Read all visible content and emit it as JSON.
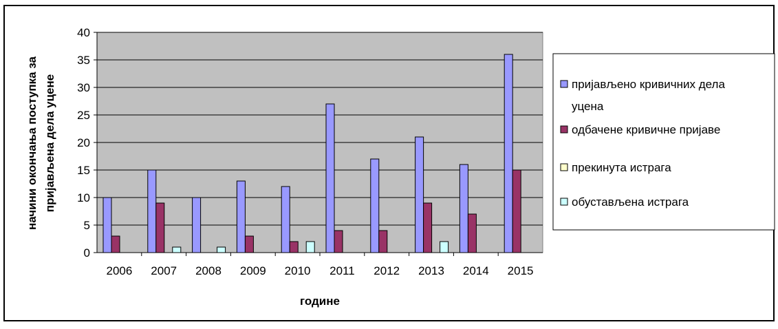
{
  "chart_data": {
    "type": "bar",
    "title": "",
    "xlabel": "године",
    "ylabel_line1": "начини окончања поступка за",
    "ylabel_line2": "пријављена дела уцене",
    "ylim": [
      0,
      40
    ],
    "yticks": [
      0,
      5,
      10,
      15,
      20,
      25,
      30,
      35,
      40
    ],
    "grid": true,
    "legend_position": "right",
    "categories": [
      "2006",
      "2007",
      "2008",
      "2009",
      "2010",
      "2011",
      "2012",
      "2013",
      "2014",
      "2015"
    ],
    "series": [
      {
        "name_line1": "пријављено кривичних дела",
        "name_line2": "уцена",
        "color": "#9999FF",
        "values": [
          10,
          15,
          10,
          13,
          12,
          27,
          17,
          21,
          16,
          36
        ]
      },
      {
        "name_line1": "одбачене кривичне пријаве",
        "name_line2": "",
        "color": "#993366",
        "values": [
          3,
          9,
          0,
          3,
          2,
          4,
          4,
          9,
          7,
          15
        ]
      },
      {
        "name_line1": "прекинута истрага",
        "name_line2": "",
        "color": "#FFFFCC",
        "values": [
          0,
          0,
          0,
          0,
          0,
          0,
          0,
          0,
          0,
          0
        ]
      },
      {
        "name_line1": "обустављена истрага",
        "name_line2": "",
        "color": "#CCFFFF",
        "values": [
          0,
          1,
          1,
          0,
          2,
          0,
          0,
          2,
          0,
          0
        ]
      }
    ],
    "plot_background": "#C0C0C0"
  }
}
